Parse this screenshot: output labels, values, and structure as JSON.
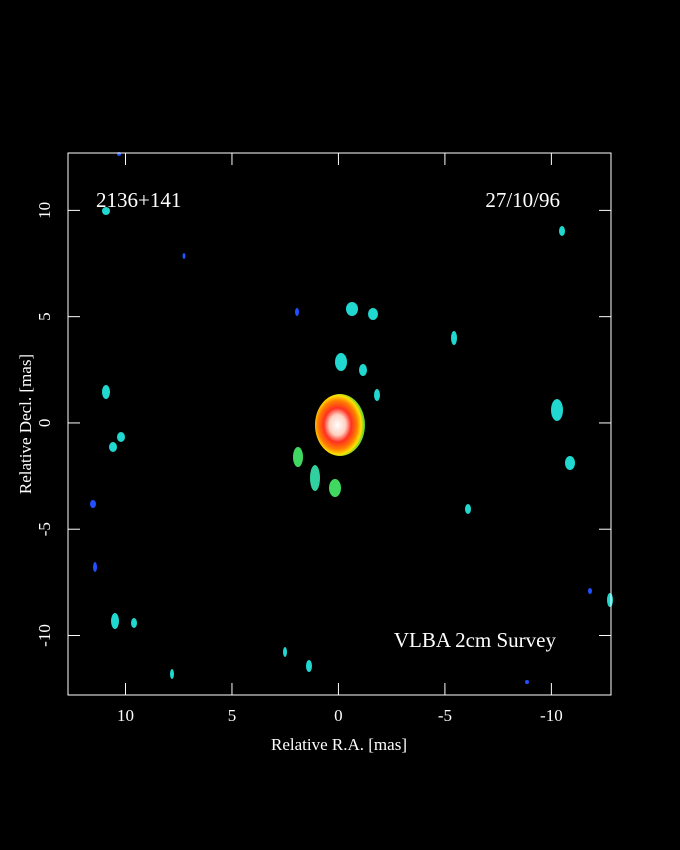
{
  "chart_data": {
    "type": "image",
    "annotations": [
      "2136+141",
      "27/10/96",
      "VLBA 2cm Survey"
    ],
    "x_label": "Relative R.A. [mas]",
    "y_label": "Relative Decl. [mas]",
    "xlim": [
      12.7,
      -12.8
    ],
    "xticks": [
      10,
      5,
      0,
      -5,
      -10
    ],
    "ylim": [
      -12.8,
      12.7
    ],
    "yticks": [
      -10,
      -5,
      0,
      5,
      10
    ]
  }
}
